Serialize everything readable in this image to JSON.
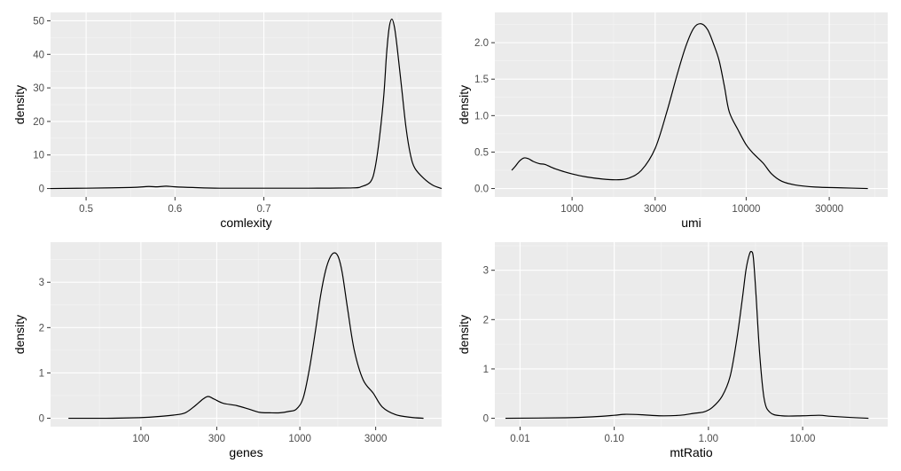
{
  "chart_data": [
    {
      "type": "line",
      "name": "complexity-density",
      "xlabel": "comlexity",
      "ylabel": "density",
      "xscale": "linear",
      "xlim": [
        0.46,
        0.9
      ],
      "ylim": [
        -2.5,
        52.5
      ],
      "xticks": [
        0.5,
        0.6,
        0.7
      ],
      "xtick_labels": [
        "0.5",
        "0.6",
        "0.7"
      ],
      "xminor": [
        0.55,
        0.65,
        0.75,
        0.8,
        0.85,
        0.9
      ],
      "yticks": [
        0,
        10,
        20,
        30,
        40,
        50
      ],
      "ytick_labels": [
        "0",
        "10",
        "20",
        "30",
        "40",
        "50"
      ],
      "yminor": [
        5,
        15,
        25,
        35,
        45
      ],
      "series": [
        {
          "name": "density",
          "x": [
            0.46,
            0.5,
            0.55,
            0.57,
            0.58,
            0.59,
            0.6,
            0.62,
            0.65,
            0.7,
            0.75,
            0.8,
            0.81,
            0.82,
            0.825,
            0.83,
            0.835,
            0.838,
            0.841,
            0.844,
            0.847,
            0.85,
            0.855,
            0.86,
            0.865,
            0.87,
            0.88,
            0.89,
            0.9
          ],
          "y": [
            0,
            0.1,
            0.3,
            0.6,
            0.5,
            0.7,
            0.5,
            0.3,
            0.1,
            0.1,
            0.1,
            0.2,
            0.6,
            2,
            6,
            15,
            28,
            40,
            48,
            50.5,
            48,
            42,
            30,
            18,
            10,
            6,
            3,
            1,
            0
          ]
        }
      ]
    },
    {
      "type": "line",
      "name": "umi-density",
      "xlabel": "umi",
      "ylabel": "density",
      "xscale": "log10",
      "xlim": [
        360,
        65000
      ],
      "ylim": [
        -0.115,
        2.415
      ],
      "xticks": [
        1000,
        3000,
        10000,
        30000
      ],
      "xtick_labels": [
        "1000",
        "3000",
        "10000",
        "30000"
      ],
      "xminor": [
        1732,
        5477,
        17320,
        54770
      ],
      "yticks": [
        0,
        0.5,
        1,
        1.5,
        2
      ],
      "ytick_labels": [
        "0.0",
        "0.5",
        "1.0",
        "1.5",
        "2.0"
      ],
      "yminor": [
        0.25,
        0.75,
        1.25,
        1.75,
        2.25
      ],
      "series": [
        {
          "name": "density",
          "x": [
            450,
            470,
            500,
            530,
            560,
            600,
            650,
            700,
            800,
            1000,
            1200,
            1500,
            1800,
            2100,
            2500,
            3000,
            3500,
            4000,
            4500,
            5000,
            5500,
            6000,
            6500,
            7000,
            7500,
            8000,
            9000,
            10000,
            11000,
            12500,
            14000,
            16000,
            19000,
            25000,
            35000,
            50000
          ],
          "y": [
            0.25,
            0.3,
            0.38,
            0.42,
            0.41,
            0.37,
            0.34,
            0.33,
            0.27,
            0.2,
            0.16,
            0.13,
            0.12,
            0.14,
            0.25,
            0.55,
            1.05,
            1.55,
            1.95,
            2.2,
            2.26,
            2.18,
            1.98,
            1.75,
            1.4,
            1.05,
            0.8,
            0.6,
            0.48,
            0.35,
            0.2,
            0.1,
            0.05,
            0.02,
            0.01,
            0
          ]
        }
      ]
    },
    {
      "type": "line",
      "name": "genes-density",
      "xlabel": "genes",
      "ylabel": "density",
      "xscale": "log10",
      "xlim": [
        27,
        7800
      ],
      "ylim": [
        -0.185,
        3.885
      ],
      "xticks": [
        100,
        300,
        1000,
        3000
      ],
      "xtick_labels": [
        "100",
        "300",
        "1000",
        "3000"
      ],
      "xminor": [
        54.8,
        173.2,
        547.7,
        1732,
        5477
      ],
      "yticks": [
        0,
        1,
        2,
        3
      ],
      "ytick_labels": [
        "0",
        "1",
        "2",
        "3"
      ],
      "yminor": [
        0.5,
        1.5,
        2.5,
        3.5
      ],
      "series": [
        {
          "name": "density",
          "x": [
            35,
            60,
            90,
            120,
            160,
            190,
            220,
            245,
            265,
            290,
            330,
            400,
            480,
            560,
            650,
            750,
            850,
            950,
            1050,
            1150,
            1250,
            1350,
            1450,
            1550,
            1650,
            1750,
            1850,
            2000,
            2200,
            2500,
            2900,
            3300,
            4000,
            5000,
            6000
          ],
          "y": [
            0,
            0,
            0.01,
            0.03,
            0.07,
            0.12,
            0.28,
            0.42,
            0.48,
            0.42,
            0.33,
            0.28,
            0.2,
            0.13,
            0.12,
            0.12,
            0.15,
            0.2,
            0.45,
            1.1,
            1.9,
            2.7,
            3.25,
            3.55,
            3.65,
            3.55,
            3.2,
            2.4,
            1.5,
            0.85,
            0.55,
            0.25,
            0.08,
            0.02,
            0
          ]
        }
      ]
    },
    {
      "type": "line",
      "name": "mtratio-density",
      "xlabel": "mtRatio",
      "ylabel": "density",
      "xscale": "log10",
      "xlim": [
        0.0054,
        80
      ],
      "ylim": [
        -0.17,
        3.57
      ],
      "xticks": [
        0.01,
        0.1,
        1,
        10
      ],
      "xtick_labels": [
        "0.01",
        "0.10",
        "1.00",
        "10.00"
      ],
      "xminor": [
        0.0316,
        0.316,
        3.16,
        31.6
      ],
      "yticks": [
        0,
        1,
        2,
        3
      ],
      "ytick_labels": [
        "0",
        "1",
        "2",
        "3"
      ],
      "yminor": [
        0.5,
        1.5,
        2.5,
        3.5
      ],
      "series": [
        {
          "name": "density",
          "x": [
            0.007,
            0.03,
            0.06,
            0.1,
            0.13,
            0.2,
            0.3,
            0.5,
            0.7,
            0.9,
            1.1,
            1.4,
            1.7,
            2.0,
            2.3,
            2.5,
            2.7,
            2.85,
            3.0,
            3.2,
            3.5,
            3.9,
            4.5,
            6,
            10,
            15,
            20,
            30,
            50
          ],
          "y": [
            0,
            0.01,
            0.03,
            0.06,
            0.08,
            0.07,
            0.05,
            0.06,
            0.1,
            0.13,
            0.22,
            0.45,
            0.85,
            1.6,
            2.45,
            3.0,
            3.3,
            3.38,
            3.25,
            2.5,
            1.3,
            0.4,
            0.12,
            0.05,
            0.05,
            0.06,
            0.04,
            0.02,
            0
          ]
        }
      ]
    }
  ]
}
